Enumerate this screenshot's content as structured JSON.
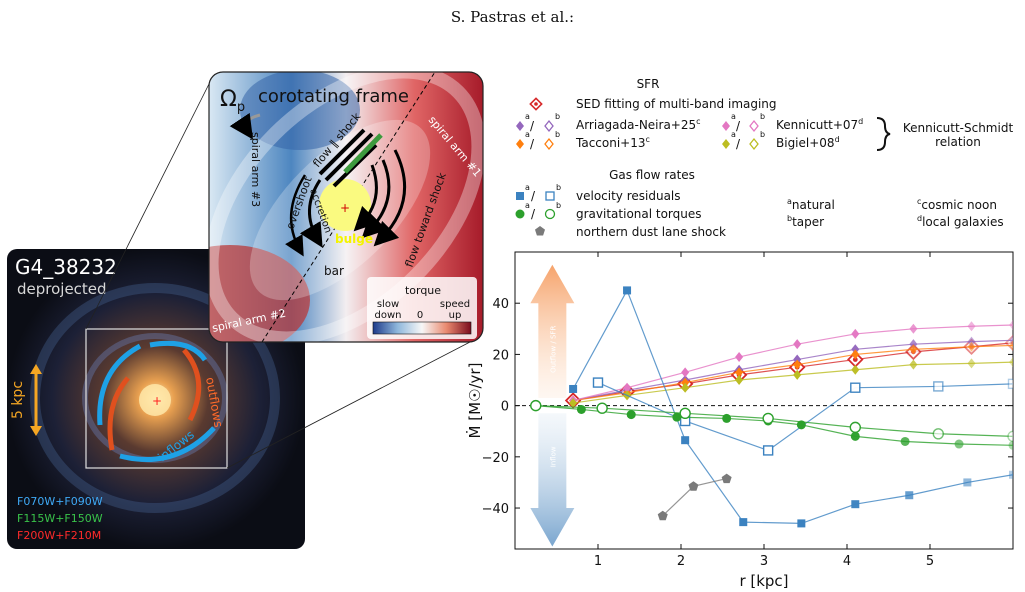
{
  "header": {
    "authors": "S. Pastras et al.:"
  },
  "galaxy_panel": {
    "name": "G4_38232",
    "subtitle": "deprojected",
    "scale": "5 kpc",
    "filters": [
      "F070W+F090W",
      "F115W+F150W",
      "F200W+F210M"
    ],
    "filter_colors": [
      "#3fa9f5",
      "#39c34a",
      "#ff2a2a"
    ],
    "labels": {
      "outflows": "outflows",
      "inflows": "inflows"
    }
  },
  "inset_panel": {
    "omega": "Ω",
    "omega_sub": "p",
    "title": "corotating frame",
    "labels": {
      "spiral_arm_3": "spiral arm #3",
      "spiral_arm_1": "spiral arm #1",
      "spiral_arm_2": "spiral arm #2",
      "flow_shock": "flow ∥ shock",
      "overshoot": "overshoot",
      "accretion": "accretion",
      "flow_toward_shock": "flow toward shock",
      "bulge": "bulge",
      "bar": "bar"
    },
    "colorbar": {
      "title": "torque",
      "left": "slow",
      "left2": "down",
      "center": "0",
      "right": "speed",
      "right2": "up"
    }
  },
  "legend": {
    "sfr_title": "SFR",
    "sed": "SED fitting of multi-band imaging",
    "arriagada": "Arriagada-Neira+25",
    "arriagada_sup": "c",
    "tacconi": "Tacconi+13",
    "tacconi_sup": "c",
    "kennicutt": "Kennicutt+07",
    "kennicutt_sup": "d",
    "bigiel": "Bigiel+08",
    "bigiel_sup": "d",
    "ks_relation": "Kennicutt-Schmidt",
    "ks_relation2": "relation",
    "gas_title": "Gas flow rates",
    "velocity": "velocity residuals",
    "torques": "gravitational torques",
    "dustlane": "northern dust lane shock",
    "sup_a": "a",
    "sup_b": "b",
    "natural": "natural",
    "taper": "taper",
    "cosmic_noon": "cosmic noon",
    "local_galaxies": "local galaxies"
  },
  "chart_data": {
    "type": "line",
    "xlabel": "r [kpc]",
    "ylabel": "Ṁ [M☉/yr]",
    "xlim": [
      0.0,
      6.0
    ],
    "ylim": [
      -56,
      60
    ],
    "xticks": [
      1,
      2,
      3,
      4,
      5
    ],
    "yticks": [
      -40,
      -20,
      0,
      20,
      40
    ],
    "outflow_arrow_label": "Outflow / SFR",
    "inflow_arrow_label": "Inflow",
    "series": [
      {
        "name": "SED fitting of multi-band imaging",
        "color": "#d62728",
        "marker": "diamond-dot",
        "x": [
          0.7,
          1.35,
          2.05,
          2.7,
          3.4,
          4.1,
          4.8,
          5.5,
          6.0
        ],
        "y": [
          2,
          5.5,
          8.5,
          12,
          15,
          18,
          21,
          23,
          24.5
        ]
      },
      {
        "name": "Arriagada-Neira+25 (natural)",
        "color": "#9467bd",
        "marker": "diamond-filled",
        "x": [
          0.7,
          1.35,
          2.05,
          2.7,
          3.4,
          4.1,
          4.8,
          5.5,
          6.0
        ],
        "y": [
          2,
          6,
          10,
          14,
          18,
          22,
          24,
          25,
          25.5
        ]
      },
      {
        "name": "Tacconi+13 (natural)",
        "color": "#ff7f0e",
        "marker": "diamond-filled",
        "x": [
          0.7,
          1.35,
          2.05,
          2.7,
          3.4,
          4.1,
          4.8,
          5.5,
          6.0
        ],
        "y": [
          2,
          5,
          9,
          13,
          16,
          20,
          22,
          23,
          23.5
        ]
      },
      {
        "name": "Kennicutt+07 (natural)",
        "color": "#e377c2",
        "marker": "diamond-filled",
        "x": [
          0.7,
          1.35,
          2.05,
          2.7,
          3.4,
          4.1,
          4.8,
          5.5,
          6.0
        ],
        "y": [
          2,
          7,
          13,
          19,
          24,
          28,
          30,
          31,
          31.5
        ]
      },
      {
        "name": "Bigiel+08 (natural)",
        "color": "#bcbd22",
        "marker": "diamond-filled",
        "x": [
          0.7,
          1.35,
          2.05,
          2.7,
          3.4,
          4.1,
          4.8,
          5.5,
          6.0
        ],
        "y": [
          1,
          4,
          7,
          10,
          12,
          14,
          16,
          16.5,
          17
        ]
      },
      {
        "name": "velocity residuals (natural)",
        "color": "#3b82c0",
        "marker": "square-filled",
        "x": [
          0.7,
          1.35,
          2.05,
          2.75,
          3.45,
          4.1,
          4.75,
          5.45,
          6.0
        ],
        "y": [
          6.5,
          45,
          -13.5,
          -45.5,
          -46,
          -38.5,
          -35,
          -30,
          -27
        ]
      },
      {
        "name": "velocity residuals (taper)",
        "color": "#3b82c0",
        "marker": "square-open",
        "x": [
          1.0,
          2.05,
          3.05,
          4.1,
          5.1,
          6.0
        ],
        "y": [
          9,
          -6,
          -17.5,
          7,
          7.5,
          8.5
        ]
      },
      {
        "name": "gravitational torques (natural)",
        "color": "#2ca02c",
        "marker": "circle-filled",
        "x": [
          0.25,
          0.8,
          1.4,
          1.95,
          2.55,
          3.05,
          3.45,
          4.1,
          4.7,
          5.35,
          6.0
        ],
        "y": [
          0,
          -1.5,
          -3.5,
          -4.5,
          -5,
          -6,
          -7.5,
          -12,
          -14,
          -15,
          -15.5
        ]
      },
      {
        "name": "gravitational torques (taper)",
        "color": "#2ca02c",
        "marker": "circle-open",
        "x": [
          0.25,
          1.05,
          2.05,
          3.05,
          4.1,
          5.1,
          6.0
        ],
        "y": [
          0,
          -1,
          -3,
          -5,
          -8.5,
          -11,
          -12
        ]
      },
      {
        "name": "northern dust lane shock",
        "color": "#7a7a7a",
        "marker": "pentagon-filled",
        "x": [
          1.78,
          2.15,
          2.55
        ],
        "y": [
          -43,
          -31.5,
          -28.5
        ]
      }
    ]
  }
}
